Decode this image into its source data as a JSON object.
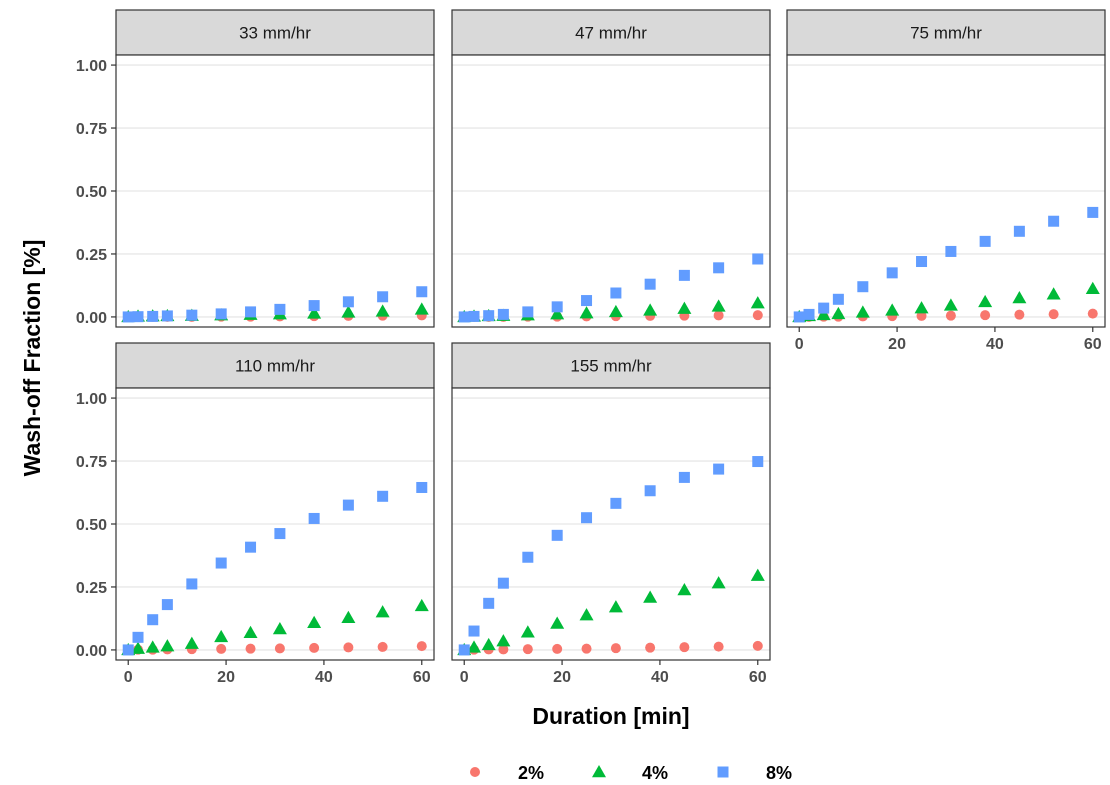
{
  "chart_data": {
    "type": "scatter",
    "layout": "faceted",
    "xlabel": "Duration [min]",
    "ylabel": "Wash-off Fraction [%]",
    "xlim": [
      -2.5,
      62.5
    ],
    "ylim": [
      -0.04,
      1.04
    ],
    "x_ticks": [
      0,
      20,
      40,
      60
    ],
    "y_ticks": [
      0.0,
      0.25,
      0.5,
      0.75,
      1.0
    ],
    "y_tick_labels": [
      "0.00",
      "0.25",
      "0.50",
      "0.75",
      "1.00"
    ],
    "grid": true,
    "legend_position": "bottom",
    "series": [
      {
        "name": "2%",
        "color": "#F8766D",
        "shape": "circle"
      },
      {
        "name": "4%",
        "color": "#00BA38",
        "shape": "triangle"
      },
      {
        "name": "8%",
        "color": "#619CFF",
        "shape": "square"
      }
    ],
    "x": [
      0,
      2,
      5,
      8,
      13,
      19,
      25,
      31,
      38,
      45,
      52,
      60
    ],
    "panels": [
      {
        "title": "33 mm/hr",
        "values": {
          "2%": [
            0,
            0,
            0,
            0,
            0,
            0.001,
            0.001,
            0.002,
            0.003,
            0.004,
            0.005,
            0.006
          ],
          "4%": [
            0,
            0.002,
            0.003,
            0.004,
            0.005,
            0.007,
            0.009,
            0.011,
            0.014,
            0.018,
            0.022,
            0.03
          ],
          "8%": [
            0,
            0.001,
            0.002,
            0.004,
            0.007,
            0.012,
            0.02,
            0.03,
            0.045,
            0.06,
            0.08,
            0.1
          ]
        }
      },
      {
        "title": "47 mm/hr",
        "values": {
          "2%": [
            0,
            0,
            0,
            0,
            0.001,
            0.001,
            0.002,
            0.003,
            0.004,
            0.005,
            0.006,
            0.007
          ],
          "4%": [
            0,
            0.002,
            0.004,
            0.005,
            0.007,
            0.011,
            0.015,
            0.02,
            0.026,
            0.033,
            0.042,
            0.055
          ],
          "8%": [
            0,
            0.002,
            0.005,
            0.01,
            0.02,
            0.04,
            0.065,
            0.095,
            0.13,
            0.165,
            0.195,
            0.23
          ]
        }
      },
      {
        "title": "75 mm/hr",
        "values": {
          "2%": [
            0,
            0,
            0.001,
            0.001,
            0.002,
            0.003,
            0.004,
            0.005,
            0.007,
            0.009,
            0.011,
            0.013
          ],
          "4%": [
            0,
            0.004,
            0.008,
            0.012,
            0.018,
            0.026,
            0.035,
            0.046,
            0.06,
            0.075,
            0.09,
            0.112
          ],
          "8%": [
            0,
            0.01,
            0.035,
            0.07,
            0.12,
            0.175,
            0.22,
            0.26,
            0.3,
            0.34,
            0.38,
            0.415
          ]
        }
      },
      {
        "title": "110 mm/hr",
        "values": {
          "2%": [
            0,
            0.001,
            0.001,
            0.002,
            0.003,
            0.004,
            0.005,
            0.006,
            0.008,
            0.01,
            0.012,
            0.015
          ],
          "4%": [
            0,
            0.005,
            0.01,
            0.015,
            0.025,
            0.052,
            0.068,
            0.083,
            0.108,
            0.128,
            0.15,
            0.175
          ],
          "8%": [
            0,
            0.05,
            0.12,
            0.18,
            0.262,
            0.345,
            0.408,
            0.462,
            0.522,
            0.575,
            0.61,
            0.645
          ]
        }
      },
      {
        "title": "155 mm/hr",
        "values": {
          "2%": [
            0,
            0.001,
            0.002,
            0.002,
            0.003,
            0.004,
            0.005,
            0.007,
            0.009,
            0.011,
            0.013,
            0.016
          ],
          "4%": [
            0,
            0.01,
            0.02,
            0.035,
            0.07,
            0.105,
            0.138,
            0.17,
            0.208,
            0.238,
            0.265,
            0.295
          ],
          "8%": [
            0,
            0.075,
            0.185,
            0.265,
            0.368,
            0.455,
            0.525,
            0.582,
            0.632,
            0.685,
            0.718,
            0.748
          ]
        }
      }
    ]
  }
}
